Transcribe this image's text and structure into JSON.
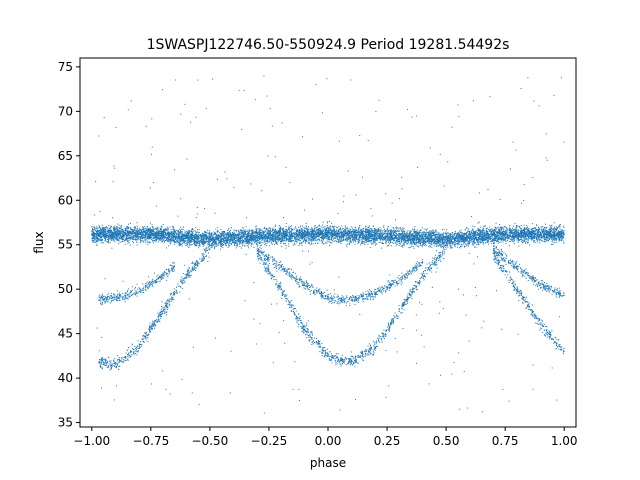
{
  "chart_data": {
    "type": "scatter",
    "title": "1SWASPJ122746.50-550924.9 Period 19281.54492s",
    "xlabel": "phase",
    "ylabel": "flux",
    "xlim": [
      -1.05,
      1.05
    ],
    "ylim": [
      34.5,
      76
    ],
    "x_ticks": [
      -1.0,
      -0.75,
      -0.5,
      -0.25,
      0.0,
      0.25,
      0.5,
      0.75,
      1.0
    ],
    "x_tick_labels": [
      "−1.00",
      "−0.75",
      "−0.50",
      "−0.25",
      "0.00",
      "0.25",
      "0.50",
      "0.75",
      "1.00"
    ],
    "y_ticks": [
      35,
      40,
      45,
      50,
      55,
      60,
      65,
      70,
      75
    ],
    "y_tick_labels": [
      "35",
      "40",
      "45",
      "50",
      "55",
      "60",
      "65",
      "70",
      "75"
    ],
    "grid": false,
    "legend": "none",
    "marker_color": "#1f77b4",
    "series": [
      {
        "description_points": [
          {
            "x": -1.0,
            "y": 56.2
          },
          {
            "x": -0.75,
            "y": 56.2
          },
          {
            "x": -0.5,
            "y": 55.6
          },
          {
            "x": -0.25,
            "y": 56.0
          },
          {
            "x": 0.0,
            "y": 56.2
          },
          {
            "x": 0.25,
            "y": 56.0
          },
          {
            "x": 0.5,
            "y": 55.6
          },
          {
            "x": 0.75,
            "y": 56.2
          },
          {
            "x": 1.0,
            "y": 56.2
          }
        ],
        "values": [
          {
            "x": -0.97,
            "y": 41.8
          },
          {
            "x": -0.9,
            "y": 41.5
          },
          {
            "x": -0.8,
            "y": 43.5
          },
          {
            "x": -0.7,
            "y": 47.5
          },
          {
            "x": -0.6,
            "y": 51.5
          },
          {
            "x": -0.5,
            "y": 54.5
          },
          {
            "x": -0.3,
            "y": 54.0
          },
          {
            "x": -0.2,
            "y": 50.0
          },
          {
            "x": -0.1,
            "y": 45.5
          },
          {
            "x": 0.0,
            "y": 42.5
          },
          {
            "x": 0.1,
            "y": 41.8
          },
          {
            "x": 0.2,
            "y": 43.5
          },
          {
            "x": 0.3,
            "y": 47.5
          },
          {
            "x": 0.4,
            "y": 51.5
          },
          {
            "x": 0.5,
            "y": 54.5
          },
          {
            "x": 0.7,
            "y": 54.0
          },
          {
            "x": 0.8,
            "y": 50.0
          },
          {
            "x": 0.9,
            "y": 46.0
          },
          {
            "x": 1.0,
            "y": 43.0
          },
          {
            "x": -0.97,
            "y": 48.8
          },
          {
            "x": -0.85,
            "y": 49.3
          },
          {
            "x": -0.75,
            "y": 50.5
          },
          {
            "x": -0.65,
            "y": 52.5
          },
          {
            "x": -0.3,
            "y": 54.5
          },
          {
            "x": -0.2,
            "y": 52.5
          },
          {
            "x": -0.1,
            "y": 50.5
          },
          {
            "x": 0.0,
            "y": 49.0
          },
          {
            "x": 0.1,
            "y": 48.8
          },
          {
            "x": 0.2,
            "y": 49.5
          },
          {
            "x": 0.3,
            "y": 51.0
          },
          {
            "x": 0.4,
            "y": 53.0
          },
          {
            "x": 0.7,
            "y": 54.5
          },
          {
            "x": 0.8,
            "y": 52.5
          },
          {
            "x": 0.9,
            "y": 50.5
          },
          {
            "x": 1.0,
            "y": 49.3
          }
        ]
      }
    ]
  }
}
